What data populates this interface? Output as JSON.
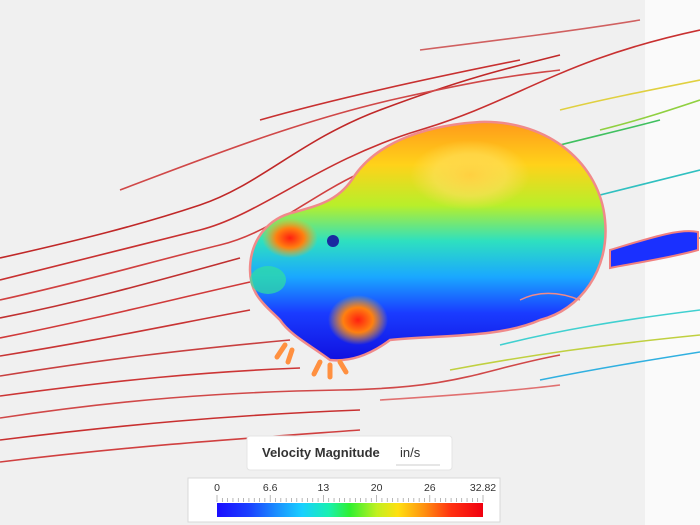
{
  "legend": {
    "title": "Velocity Magnitude",
    "unit": "in/s",
    "ticks": [
      "0",
      "6.6",
      "13",
      "20",
      "26",
      "32.82"
    ]
  }
}
